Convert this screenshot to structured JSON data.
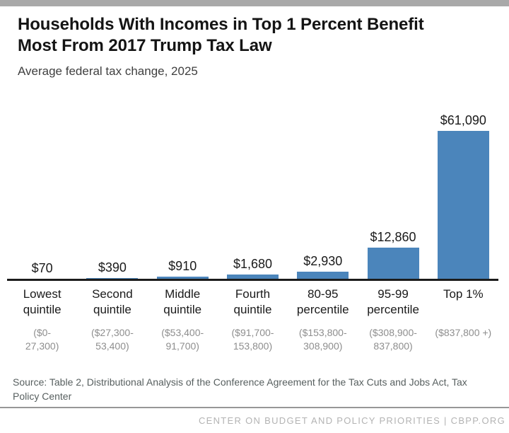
{
  "chart_data": {
    "type": "bar",
    "title": "Households With Incomes in Top 1 Percent Benefit Most From 2017 Trump Tax Law",
    "subtitle": "Average federal tax change, 2025",
    "bar_color": "#4b85bb",
    "ylim": [
      0,
      61090
    ],
    "grid": false,
    "legend": false,
    "categories": [
      {
        "label": "Lowest quintile",
        "range": "($0-27,300)",
        "range_lines": [
          "($0-",
          "27,300)"
        ],
        "value": 70,
        "value_label": "$70"
      },
      {
        "label": "Second quintile",
        "range": "($27,300-53,400)",
        "range_lines": [
          "($27,300-",
          "53,400)"
        ],
        "value": 390,
        "value_label": "$390"
      },
      {
        "label": "Middle quintile",
        "range": "($53,400-91,700)",
        "range_lines": [
          "($53,400-",
          "91,700)"
        ],
        "value": 910,
        "value_label": "$910"
      },
      {
        "label": "Fourth quintile",
        "range": "($91,700-153,800)",
        "range_lines": [
          "($91,700-",
          "153,800)"
        ],
        "value": 1680,
        "value_label": "$1,680"
      },
      {
        "label": "80-95 percentile",
        "range": "($153,800-308,900)",
        "range_lines": [
          "($153,800-",
          "308,900)"
        ],
        "value": 2930,
        "value_label": "$2,930"
      },
      {
        "label": "95-99 percentile",
        "range": "($308,900-837,800)",
        "range_lines": [
          "($308,900-",
          "837,800)"
        ],
        "value": 12860,
        "value_label": "$12,860"
      },
      {
        "label": "Top 1%",
        "range": "($837,800 +)",
        "range_lines": [
          "($837,800 +)"
        ],
        "value": 61090,
        "value_label": "$61,090"
      }
    ]
  },
  "source_note": "Source: Table 2, Distributional Analysis of the Conference Agreement for the Tax Cuts and Jobs Act, Tax Policy Center",
  "footer_text": "CENTER ON BUDGET AND POLICY PRIORITIES | CBPP.ORG",
  "colors": {
    "top_bar": "#a9a9a9",
    "baseline": "#1c1c1c",
    "range_text": "#8e8e8e"
  }
}
